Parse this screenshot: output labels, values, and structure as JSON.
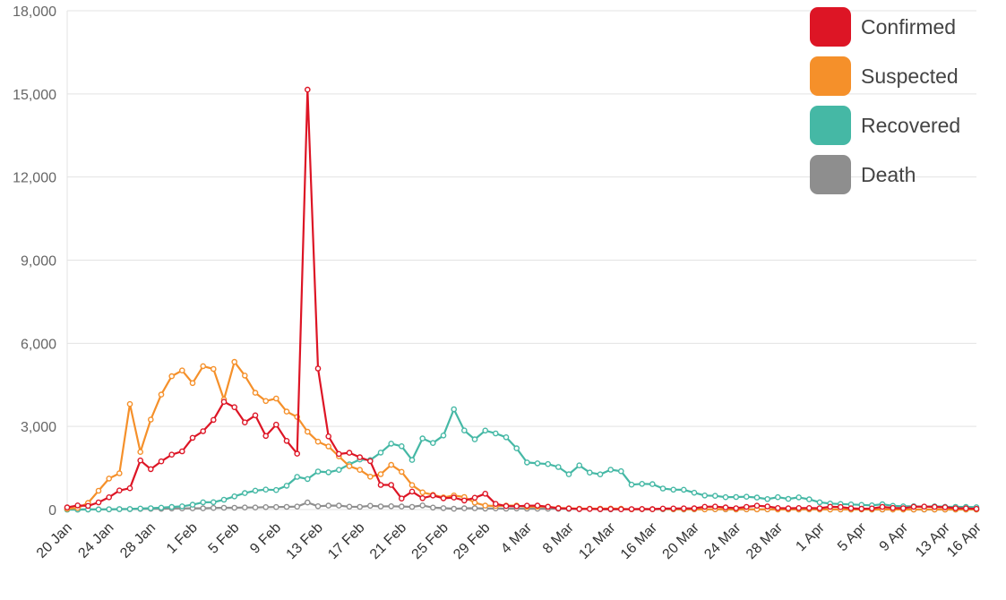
{
  "chart_data": {
    "type": "line",
    "ylim": [
      0,
      18000
    ],
    "y_ticks": [
      "0",
      "3,000",
      "6,000",
      "9,000",
      "12,000",
      "15,000",
      "18,000"
    ],
    "y_tick_values": [
      0,
      3000,
      6000,
      9000,
      12000,
      15000,
      18000
    ],
    "x_start": "2020-01-20",
    "x_end": "2020-04-16",
    "x_tick_labels": [
      "20 Jan",
      "24 Jan",
      "28 Jan",
      "1 Feb",
      "5 Feb",
      "9 Feb",
      "13 Feb",
      "17 Feb",
      "21 Feb",
      "25 Feb",
      "29 Feb",
      "4 Mar",
      "8 Mar",
      "12 Mar",
      "16 Mar",
      "20 Mar",
      "24 Mar",
      "28 Mar",
      "1 Apr",
      "5 Apr",
      "9 Apr",
      "13 Apr",
      "16 Apr"
    ],
    "x_tick_days": [
      0,
      4,
      8,
      12,
      16,
      20,
      24,
      28,
      32,
      36,
      40,
      44,
      48,
      52,
      56,
      60,
      64,
      68,
      72,
      76,
      80,
      84,
      87
    ],
    "grid": true,
    "legend_position": "top-right",
    "series": [
      {
        "name": "Confirmed",
        "color": "#dd1525",
        "values": [
          77,
          149,
          131,
          259,
          444,
          688,
          769,
          1771,
          1459,
          1737,
          1982,
          2102,
          2590,
          2829,
          3235,
          3887,
          3694,
          3143,
          3399,
          2656,
          3062,
          2478,
          2015,
          15152,
          5090,
          2641,
          2008,
          2048,
          1886,
          1749,
          890,
          889,
          397,
          648,
          409,
          508,
          406,
          433,
          327,
          427,
          573,
          202,
          125,
          119,
          139,
          143,
          99,
          44,
          40,
          19,
          24,
          15,
          20,
          11,
          16,
          21,
          13,
          34,
          39,
          41,
          46,
          99,
          108,
          78,
          47,
          98,
          139,
          112,
          54,
          45,
          54,
          55,
          48,
          99,
          89,
          46,
          30,
          39,
          98,
          57,
          47,
          99,
          108,
          97,
          83,
          47,
          41,
          26
        ]
      },
      {
        "name": "Suspected",
        "color": "#f5902a",
        "values": [
          27,
          58,
          239,
          680,
          1118,
          1309,
          3806,
          2077,
          3248,
          4148,
          4812,
          5019,
          4562,
          5173,
          5072,
          3971,
          5328,
          4833,
          4214,
          3916,
          4008,
          3536,
          3342,
          2807,
          2450,
          2277,
          1918,
          1563,
          1432,
          1185,
          1277,
          1614,
          1361,
          882,
          620,
          530,
          439,
          508,
          452,
          248,
          141,
          129,
          143,
          143,
          99,
          103,
          102,
          59,
          45,
          31,
          33,
          33,
          35,
          28,
          11,
          20,
          15,
          26,
          15,
          13,
          12,
          8,
          12,
          15,
          6,
          9,
          7,
          11,
          3,
          5,
          6,
          10,
          5,
          4,
          8,
          3,
          5,
          4,
          7,
          3,
          4,
          2,
          5,
          3,
          2,
          4,
          3,
          2
        ]
      },
      {
        "name": "Recovered",
        "color": "#45b8a5",
        "values": [
          0,
          1,
          2,
          3,
          9,
          15,
          20,
          34,
          47,
          67,
          93,
          115,
          176,
          262,
          265,
          356,
          476,
          595,
          683,
          720,
          703,
          858,
          1181,
          1103,
          1373,
          1344,
          1433,
          1632,
          1807,
          1788,
          2054,
          2377,
          2285,
          1790,
          2565,
          2402,
          2671,
          3620,
          2855,
          2534,
          2850,
          2748,
          2609,
          2211,
          1699,
          1667,
          1643,
          1534,
          1273,
          1592,
          1336,
          1271,
          1439,
          1382,
          898,
          929,
          917,
          759,
          716,
          713,
          609,
          507,
          496,
          446,
          453,
          462,
          432,
          378,
          447,
          384,
          441,
          368,
          262,
          216,
          200,
          185,
          168,
          152,
          192,
          137,
          116,
          119,
          103,
          117,
          101,
          96,
          94,
          85
        ]
      },
      {
        "name": "Death",
        "color": "#8e8e8e",
        "values": [
          0,
          1,
          2,
          5,
          8,
          16,
          15,
          24,
          26,
          26,
          38,
          43,
          46,
          45,
          57,
          64,
          65,
          73,
          73,
          86,
          89,
          97,
          108,
          254,
          121,
          143,
          142,
          105,
          98,
          136,
          114,
          118,
          109,
          97,
          150,
          71,
          52,
          29,
          44,
          47,
          35,
          42,
          31,
          38,
          31,
          30,
          28,
          27,
          22,
          17,
          22,
          11,
          7,
          13,
          10,
          14,
          13,
          11,
          8,
          3,
          7,
          6,
          9,
          7,
          4,
          6,
          5,
          5,
          5,
          4,
          3,
          6,
          3,
          2,
          4,
          1,
          2,
          1,
          1,
          2,
          2,
          1,
          1,
          1,
          1,
          1,
          1,
          1
        ]
      }
    ]
  }
}
